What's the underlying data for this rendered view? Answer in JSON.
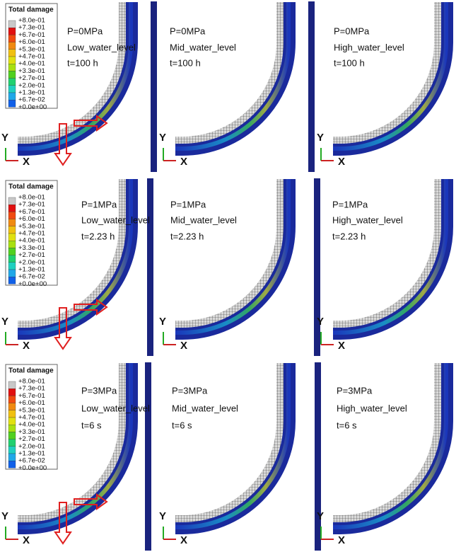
{
  "rows": [
    {
      "legend": {
        "title": "Total damage",
        "labels": [
          "+8.0e-01",
          "+7.3e-01",
          "+6.7e-01",
          "+6.0e-01",
          "+5.3e-01",
          "+4.7e-01",
          "+4.0e-01",
          "+3.3e-01",
          "+2.7e-01",
          "+2.0e-01",
          "+1.3e-01",
          "+6.7e-02",
          "+0.0e+00"
        ]
      },
      "panels": [
        {
          "pressure": "P=0MPa",
          "level": "Low_water_level",
          "time": "t=100 h",
          "axes": {
            "y": "Y",
            "x": "X"
          }
        },
        {
          "pressure": "P=0MPa",
          "level": "Mid_water_level",
          "time": "t=100 h",
          "axes": {
            "y": "Y",
            "x": "X"
          }
        },
        {
          "pressure": "P=0MPa",
          "level": "High_water_level",
          "time": "t=100 h",
          "axes": {
            "y": "Y",
            "x": "X"
          }
        }
      ]
    },
    {
      "legend": {
        "title": "Total damage",
        "labels": [
          "+8.0e-01",
          "+7.3e-01",
          "+6.7e-01",
          "+6.0e-01",
          "+5.3e-01",
          "+4.7e-01",
          "+4.0e-01",
          "+3.3e-01",
          "+2.7e-01",
          "+2.0e-01",
          "+1.3e-01",
          "+6.7e-02",
          "+0.0e+00"
        ]
      },
      "panels": [
        {
          "pressure": "P=1MPa",
          "level": "Low_water_level",
          "time": "t=2.23 h",
          "axes": {
            "y": "Y",
            "x": "X"
          }
        },
        {
          "pressure": "P=1MPa",
          "level": "Mid_water_level",
          "time": "t=2.23 h",
          "axes": {
            "y": "Y",
            "x": "X"
          }
        },
        {
          "pressure": "P=1MPa",
          "level": "High_water_level",
          "time": "t=2.23 h",
          "axes": {
            "y": "Y",
            "x": "X"
          }
        }
      ]
    },
    {
      "legend": {
        "title": "Total damage",
        "labels": [
          "+8.0e-01",
          "+7.3e-01",
          "+6.7e-01",
          "+6.0e-01",
          "+5.3e-01",
          "+4.7e-01",
          "+4.0e-01",
          "+3.3e-01",
          "+2.7e-01",
          "+2.0e-01",
          "+1.3e-01",
          "+6.7e-02",
          "+0.0e+00"
        ]
      },
      "panels": [
        {
          "pressure": "P=3MPa",
          "level": "Low_water_level",
          "time": "t=6 s",
          "axes": {
            "y": "Y",
            "x": "X"
          }
        },
        {
          "pressure": "P=3MPa",
          "level": "Mid_water_level",
          "time": "t=6 s",
          "axes": {
            "y": "Y",
            "x": "X"
          }
        },
        {
          "pressure": "P=3MPa",
          "level": "High_water_level",
          "time": "t=6 s",
          "axes": {
            "y": "Y",
            "x": "X"
          }
        }
      ]
    }
  ]
}
